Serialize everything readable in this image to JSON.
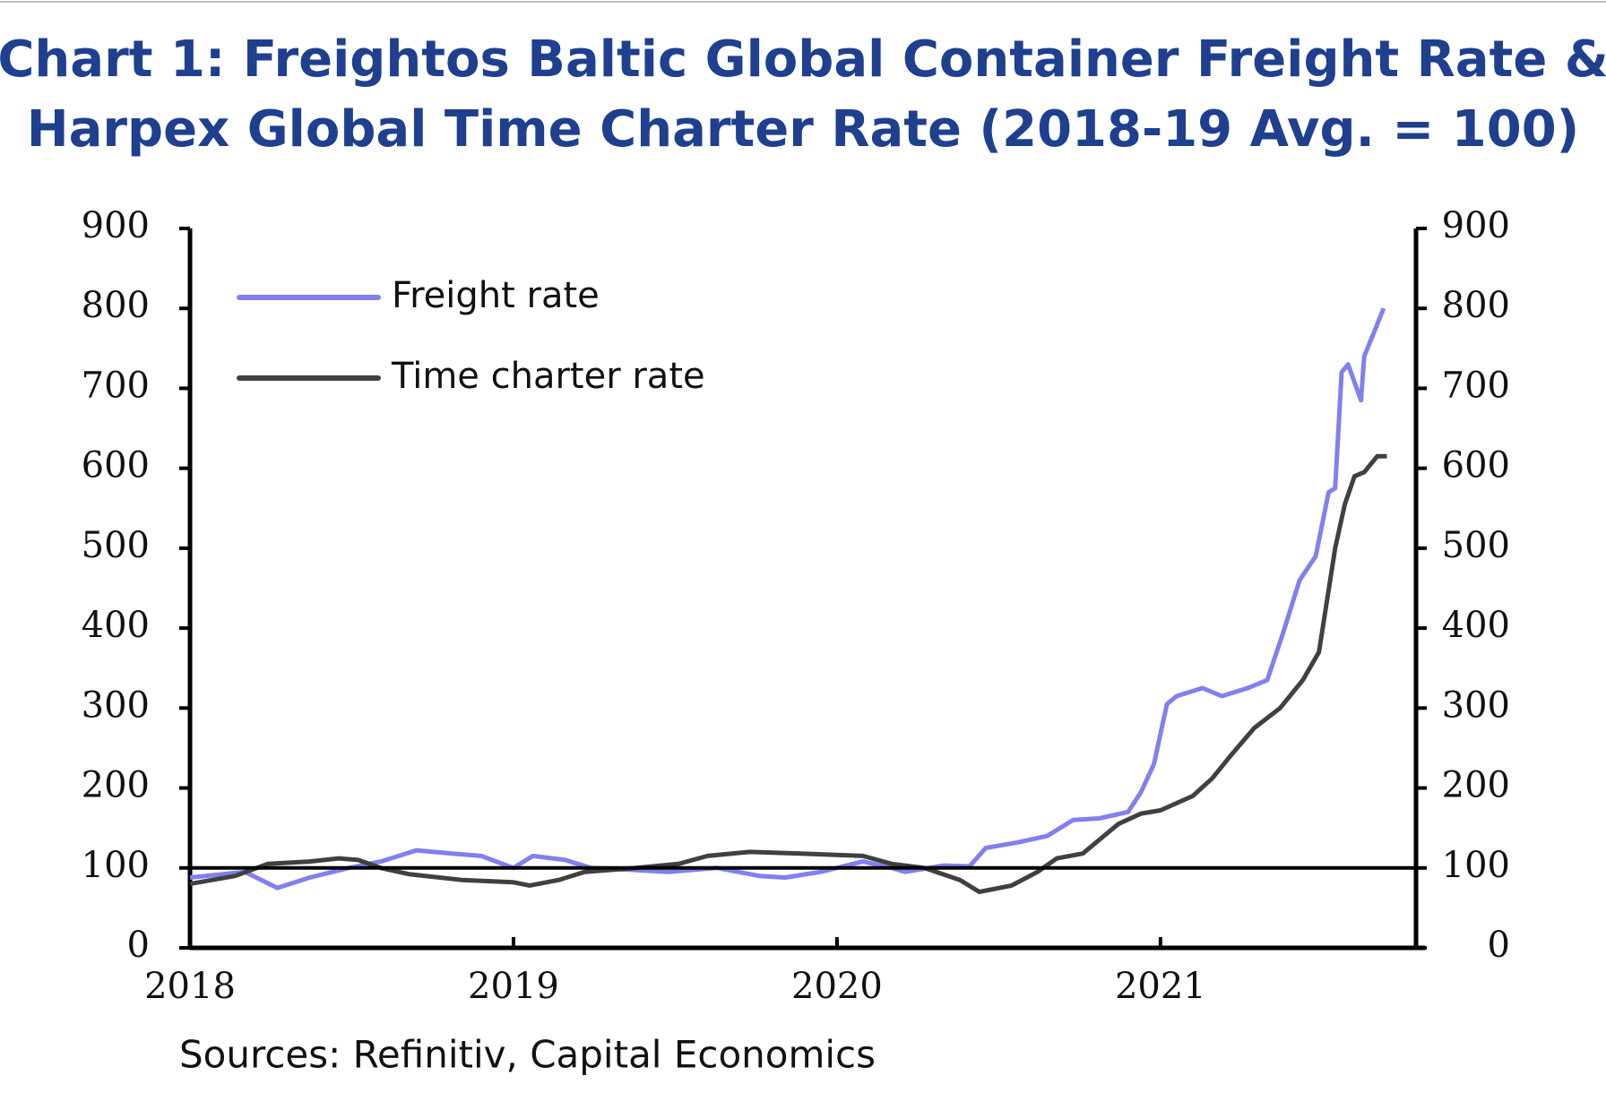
{
  "chart_data": {
    "type": "line",
    "title": "Chart 1: Freightos Baltic Global Container Freight Rate &",
    "subtitle": "Harpex Global Time Charter Rate (2018-19 Avg. = 100)",
    "source": "Sources: Refinitiv, Capital Economics",
    "xlim": [
      2018,
      2021.79
    ],
    "xticks": [
      2018,
      2019,
      2020,
      2021
    ],
    "ylim": [
      0,
      900
    ],
    "yticks": [
      0,
      100,
      200,
      300,
      400,
      500,
      600,
      700,
      800,
      900
    ],
    "y2lim": [
      0,
      900
    ],
    "y2ticks": [
      0,
      100,
      200,
      300,
      400,
      500,
      600,
      700,
      800,
      900
    ],
    "reference_line": 100,
    "legend": "upper left",
    "series": [
      {
        "name": "Freight rate",
        "color": "#8080f0",
        "x": [
          2018.0,
          2018.17,
          2018.27,
          2018.37,
          2018.49,
          2018.59,
          2018.7,
          2018.81,
          2018.9,
          2019.0,
          2019.06,
          2019.16,
          2019.24,
          2019.35,
          2019.48,
          2019.63,
          2019.76,
          2019.84,
          2019.95,
          2020.08,
          2020.17,
          2020.21,
          2020.33,
          2020.41,
          2020.46,
          2020.56,
          2020.65,
          2020.73,
          2020.81,
          2020.9,
          2020.94,
          2020.98,
          2021.02,
          2021.05,
          2021.13,
          2021.19,
          2021.27,
          2021.33,
          2021.38,
          2021.43,
          2021.48,
          2021.52,
          2021.54,
          2021.56,
          2021.58,
          2021.62,
          2021.63,
          2021.67,
          2021.69
        ],
        "values": [
          88,
          95,
          75,
          88,
          100,
          108,
          122,
          118,
          115,
          100,
          115,
          110,
          100,
          98,
          95,
          100,
          90,
          88,
          95,
          108,
          100,
          95,
          103,
          102,
          125,
          132,
          140,
          160,
          162,
          170,
          195,
          230,
          305,
          315,
          325,
          315,
          325,
          335,
          395,
          460,
          490,
          570,
          575,
          720,
          730,
          685,
          740,
          780,
          800
        ]
      },
      {
        "name": "Time charter rate",
        "color": "#404040",
        "x": [
          2018.0,
          2018.14,
          2018.24,
          2018.37,
          2018.46,
          2018.52,
          2018.59,
          2018.68,
          2018.84,
          2019.0,
          2019.05,
          2019.14,
          2019.22,
          2019.38,
          2019.51,
          2019.6,
          2019.73,
          2019.89,
          2020.08,
          2020.17,
          2020.27,
          2020.38,
          2020.44,
          2020.54,
          2020.62,
          2020.68,
          2020.76,
          2020.87,
          2020.94,
          2021.0,
          2021.1,
          2021.16,
          2021.22,
          2021.29,
          2021.37,
          2021.44,
          2021.49,
          2021.54,
          2021.57,
          2021.6,
          2021.63,
          2021.67,
          2021.7
        ],
        "values": [
          80,
          90,
          105,
          108,
          112,
          110,
          100,
          92,
          85,
          82,
          78,
          85,
          95,
          100,
          105,
          115,
          120,
          118,
          115,
          105,
          100,
          85,
          70,
          78,
          95,
          112,
          118,
          155,
          168,
          172,
          190,
          212,
          242,
          275,
          300,
          335,
          370,
          500,
          555,
          590,
          595,
          615,
          615
        ]
      }
    ]
  }
}
